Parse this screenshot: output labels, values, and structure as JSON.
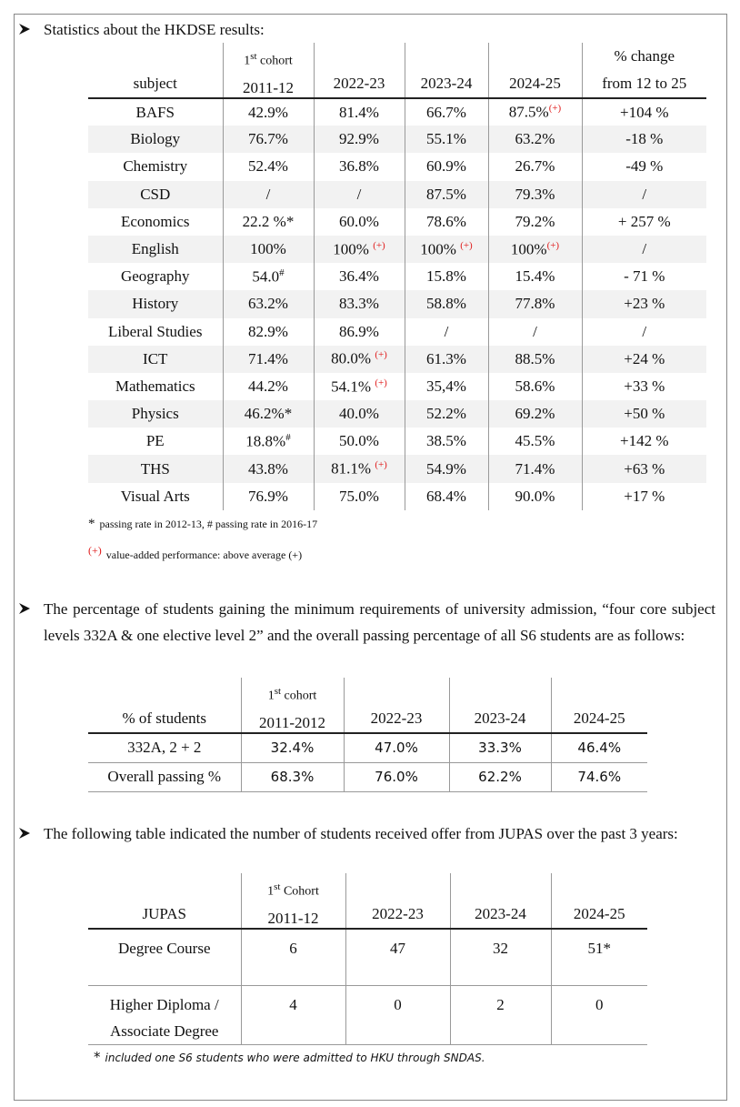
{
  "section1": {
    "heading": "Statistics about the HKDSE results:",
    "table": {
      "header": [
        {
          "bottom": "subject"
        },
        {
          "top": {
            "text": "1",
            "sup": "st",
            "after": " cohort"
          },
          "bottom": "2011-12"
        },
        {
          "bottom": "2022-23"
        },
        {
          "bottom": "2023-24"
        },
        {
          "bottom": "2024-25"
        },
        {
          "top": "% change",
          "bottom": "from 12 to 25"
        }
      ],
      "rows": [
        [
          "BAFS",
          "42.9%",
          "81.4%",
          "66.7%",
          {
            "text": "87.5%",
            "mark": "(+)"
          },
          "+104 %"
        ],
        [
          "Biology",
          "76.7%",
          "92.9%",
          "55.1%",
          "63.2%",
          "-18 %"
        ],
        [
          "Chemistry",
          "52.4%",
          "36.8%",
          "60.9%",
          "26.7%",
          "-49 %"
        ],
        [
          "CSD",
          "/",
          "/",
          "87.5%",
          "79.3%",
          "/"
        ],
        [
          "Economics",
          "22.2 %*",
          "60.0%",
          "78.6%",
          "79.2%",
          "+ 257 %"
        ],
        [
          "English",
          "100%",
          {
            "text": "100% ",
            "mark": "(+)"
          },
          {
            "text": "100% ",
            "mark": "(+)"
          },
          {
            "text": "100%",
            "mark": "(+)"
          },
          "/"
        ],
        [
          "Geography",
          {
            "text": "54.0",
            "sup": "#"
          },
          "36.4%",
          "15.8%",
          "15.4%",
          "- 71 %"
        ],
        [
          "History",
          "63.2%",
          "83.3%",
          "58.8%",
          "77.8%",
          "+23 %"
        ],
        [
          "Liberal Studies",
          "82.9%",
          "86.9%",
          "/",
          "/",
          "/"
        ],
        [
          "ICT",
          "71.4%",
          {
            "text": "80.0% ",
            "mark": "(+)"
          },
          "61.3%",
          "88.5%",
          "+24 %"
        ],
        [
          "Mathematics",
          "44.2%",
          {
            "text": "54.1% ",
            "mark": "(+)"
          },
          "35,4%",
          "58.6%",
          "+33 %"
        ],
        [
          "Physics",
          "46.2%*",
          "40.0%",
          "52.2%",
          "69.2%",
          "+50 %"
        ],
        [
          "PE",
          {
            "text": "18.8%",
            "sup": "#"
          },
          "50.0%",
          "38.5%",
          "45.5%",
          "+142 %"
        ],
        [
          "THS",
          "43.8%",
          {
            "text": "81.1% ",
            "mark": "(+)"
          },
          "54.9%",
          "71.4%",
          "+63 %"
        ],
        [
          "Visual Arts",
          "76.9%",
          "75.0%",
          "68.4%",
          "90.0%",
          "+17 %"
        ]
      ]
    },
    "notes": [
      {
        "symbol": "*",
        "text": "passing rate in 2012-13, # passing rate in 2016-17"
      },
      {
        "symbol": "(+)",
        "text": "value-added performance: above average (+)"
      }
    ]
  },
  "section2": {
    "heading": "The percentage of students gaining the minimum requirements of university admission, “four core subject levels 332A & one elective level 2” and the overall passing percentage of all S6 students are as follows:",
    "table": {
      "header": [
        {
          "bottom": "% of students"
        },
        {
          "top": {
            "text": "1",
            "sup": "st",
            "after": " cohort"
          },
          "bottom": "2011-2012"
        },
        {
          "bottom": "2022-23"
        },
        {
          "bottom": "2023-24"
        },
        {
          "bottom": "2024-25"
        }
      ],
      "rows": [
        [
          "332A, 2 + 2",
          "32.4%",
          "47.0%",
          "33.3%",
          "46.4%"
        ],
        [
          "Overall passing %",
          "68.3%",
          "76.0%",
          "62.2%",
          "74.6%"
        ]
      ]
    }
  },
  "section3": {
    "heading": "The following table indicated the number of students received offer from JUPAS over the past 3 years:",
    "table": {
      "header": [
        {
          "bottom": "JUPAS"
        },
        {
          "top": {
            "text": "1",
            "sup": "st",
            "after": " Cohort"
          },
          "bottom": "2011-12"
        },
        {
          "bottom": "2022-23"
        },
        {
          "bottom": "2023-24"
        },
        {
          "bottom": "2024-25"
        }
      ],
      "rows": [
        [
          "Degree Course",
          6,
          47,
          32,
          "51*"
        ],
        [
          [
            "Higher Diploma /",
            "Associate Degree"
          ],
          4,
          0,
          2,
          0
        ]
      ]
    },
    "footnote": {
      "symbol": "*",
      "text": "included one S6 students who were admitted to HKU through SNDAS."
    }
  }
}
